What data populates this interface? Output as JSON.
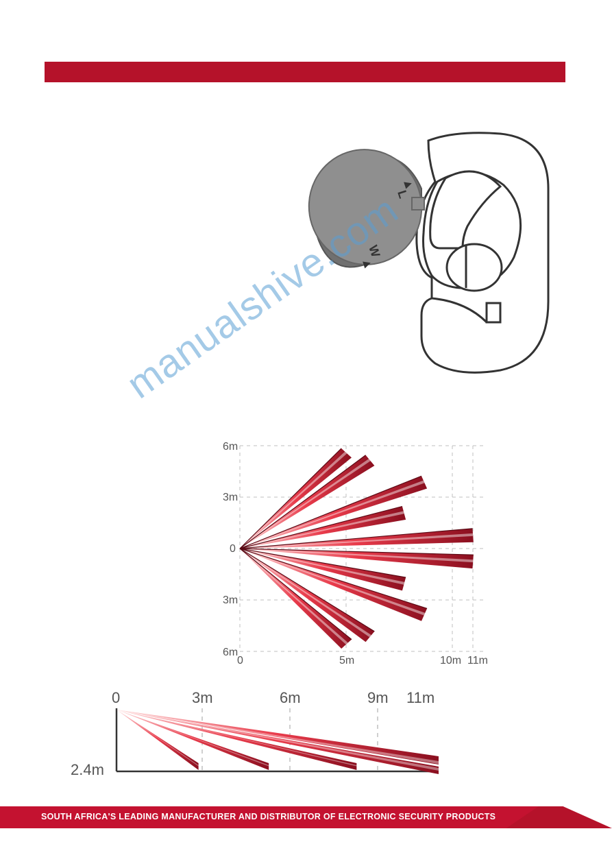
{
  "header": {
    "bar_color": "#b5122a"
  },
  "watermark": {
    "text": "manualshive.com",
    "color": "#5a9fd4"
  },
  "sensor": {
    "lens_label_top": "L",
    "lens_label_bottom": "W",
    "body_fill": "#ffffff",
    "body_stroke": "#333333",
    "lens_fill": "#8a8a8a"
  },
  "fan_chart": {
    "type": "radial-beam-diagram",
    "x_labels": [
      "0",
      "5m",
      "10m",
      "11m"
    ],
    "y_labels": [
      "6m",
      "3m",
      "0",
      "3m",
      "6m"
    ],
    "x_ticks": [
      0,
      5,
      10,
      11
    ],
    "y_ticks": [
      -6,
      -3,
      0,
      3,
      6
    ],
    "xlim": [
      0,
      11
    ],
    "ylim": [
      -6,
      6
    ],
    "beam_colors": {
      "outer": "#8a0f1f",
      "mid": "#d52638",
      "inner": "#ffffff"
    },
    "grid_color": "#bfbfbf",
    "axis_color": "#555555",
    "beams": [
      {
        "angle_deg": 48,
        "length": 7.5
      },
      {
        "angle_deg": 40,
        "length": 8.0
      },
      {
        "angle_deg": 24,
        "length": 9.5
      },
      {
        "angle_deg": 15,
        "length": 8.0
      },
      {
        "angle_deg": 4,
        "length": 11.0
      },
      {
        "angle_deg": -4,
        "length": 11.0
      },
      {
        "angle_deg": -15,
        "length": 8.0
      },
      {
        "angle_deg": -24,
        "length": 9.5
      },
      {
        "angle_deg": -40,
        "length": 8.0
      },
      {
        "angle_deg": -48,
        "length": 7.5
      }
    ]
  },
  "side_chart": {
    "type": "side-view-beam-diagram",
    "x_labels": [
      "0",
      "3m",
      "6m",
      "9m",
      "11m"
    ],
    "x_ticks": [
      0,
      3,
      6,
      9,
      11
    ],
    "height_label": "2.4m",
    "xlim": [
      0,
      11
    ],
    "beam_colors": {
      "outer": "#8a0f1f",
      "mid": "#d52638",
      "inner": "#ffffff"
    },
    "grid_color": "#bfbfbf",
    "axis_color": "#333333",
    "beams": [
      {
        "reach": 2.8
      },
      {
        "reach": 5.2
      },
      {
        "reach": 8.2
      },
      {
        "reach": 11.0,
        "thick": true
      }
    ]
  },
  "footer": {
    "text": "SOUTH AFRICA'S LEADING MANUFACTURER AND DISTRIBUTOR OF ELECTRONIC SECURITY PRODUCTS",
    "bg_color": "#b5122a",
    "text_color": "#ffffff"
  }
}
